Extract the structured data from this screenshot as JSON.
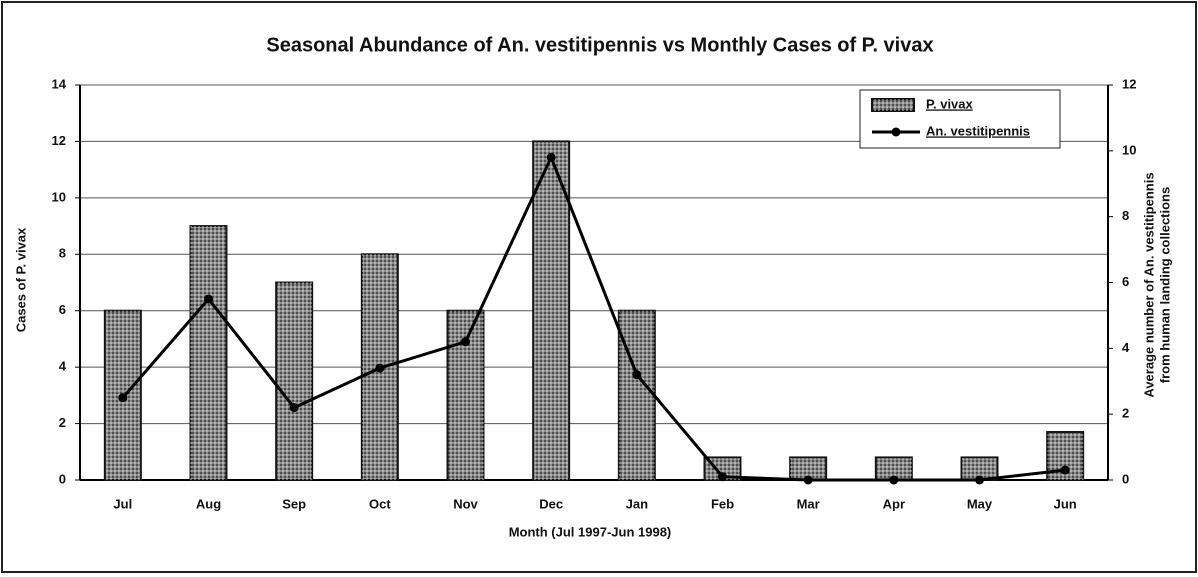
{
  "chart_data": {
    "type": "bar",
    "title": "Seasonal Abundance of An. vestitipennis vs Monthly Cases of P. vivax",
    "xlabel": "Month (Jul 1997-Jun 1998)",
    "ylabel": "Cases of P. vivax",
    "y2label": [
      "Average number of An. vestitipennis",
      "from human landing collections"
    ],
    "categories": [
      "Jul",
      "Aug",
      "Sep",
      "Oct",
      "Nov",
      "Dec",
      "Jan",
      "Feb",
      "Mar",
      "Apr",
      "May",
      "Jun"
    ],
    "series": [
      {
        "name": "P. vivax",
        "type": "bar",
        "axis": "y",
        "color": "#8a8a8a",
        "values": [
          6,
          9,
          7,
          8,
          6,
          12,
          6,
          0.8,
          0.8,
          0.8,
          0.8,
          1.7
        ]
      },
      {
        "name": "An. vestitipennis",
        "type": "line",
        "axis": "y2",
        "color": "#000000",
        "values": [
          2.5,
          5.5,
          2.2,
          3.4,
          4.2,
          9.8,
          3.2,
          0.1,
          0,
          0,
          0,
          0.3
        ]
      }
    ],
    "ylim": [
      0,
      14
    ],
    "yticks": [
      0,
      2,
      4,
      6,
      8,
      10,
      12,
      14
    ],
    "y2lim": [
      0,
      12
    ],
    "y2ticks": [
      0,
      2,
      4,
      6,
      8,
      10,
      12
    ],
    "grid": true,
    "legend": "top-right"
  }
}
